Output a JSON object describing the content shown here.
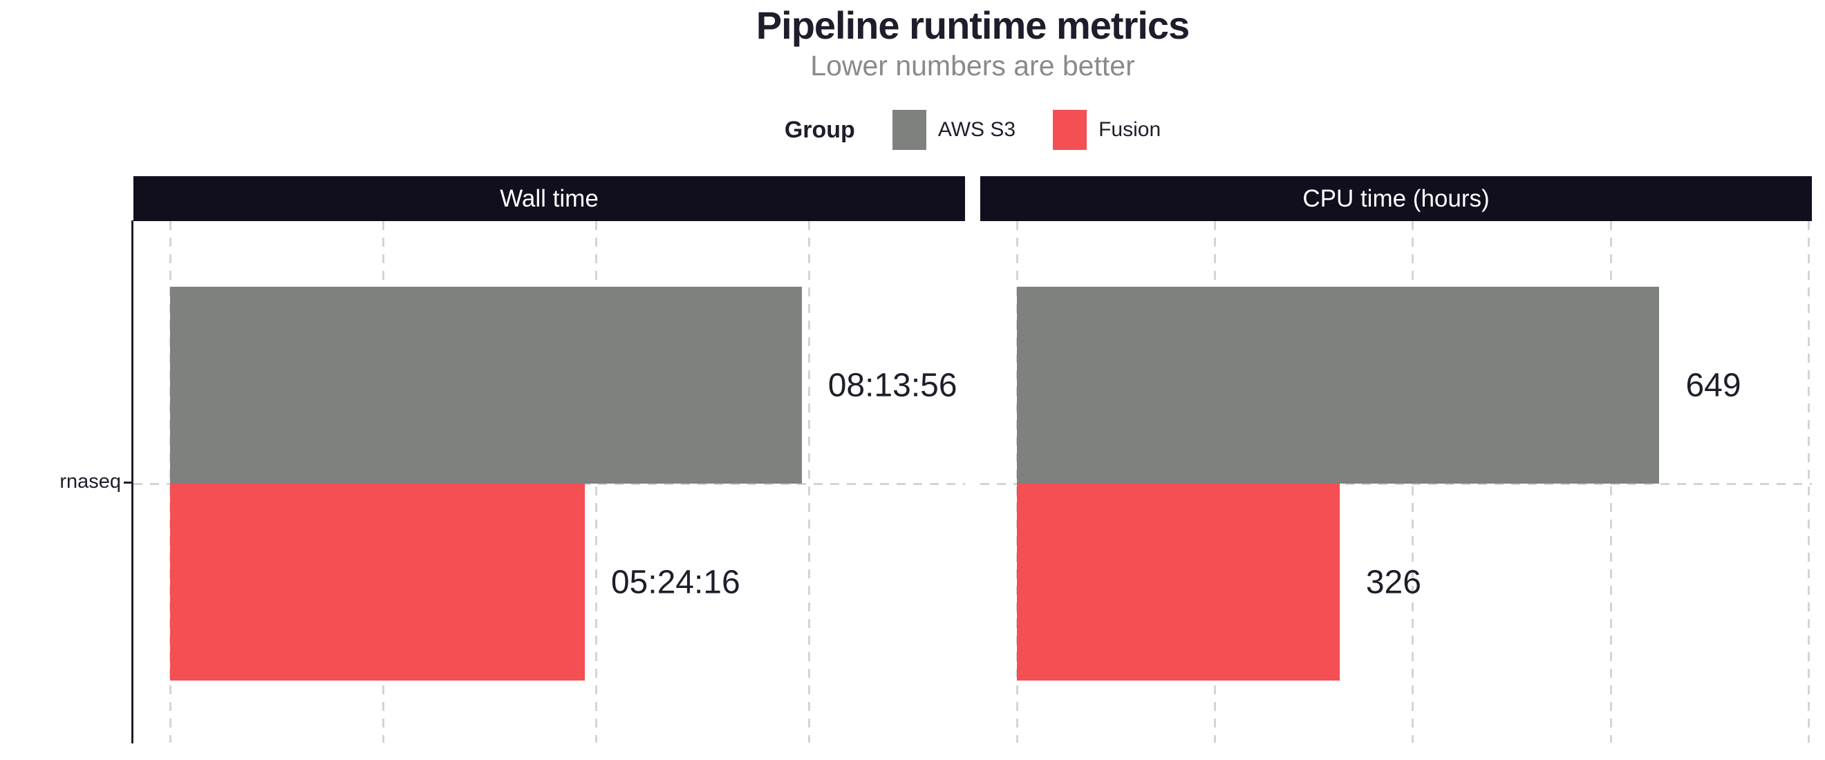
{
  "title": "Pipeline runtime metrics",
  "subtitle": "Lower numbers are better",
  "legend": {
    "title": "Group",
    "items": [
      {
        "label": "AWS S3",
        "color": "#7f817f"
      },
      {
        "label": "Fusion",
        "color": "#f44f53"
      }
    ]
  },
  "colors": {
    "text": "#1e1d2b",
    "subtitle": "#8a8a8a",
    "strip_background": "#110e1d",
    "strip_text": "#ffffff",
    "gridline": "#d4d4d4",
    "axis": "#1e1d2b",
    "aws_s3": "#7f817f",
    "fusion": "#f44f53",
    "background": "#ffffff"
  },
  "chart_data": {
    "type": "bar",
    "orientation": "horizontal",
    "title": "Pipeline runtime metrics",
    "subtitle": "Lower numbers are better",
    "legend_position": "top",
    "grid": "dashed",
    "categories": [
      "rnaseq"
    ],
    "facets": [
      {
        "title": "Wall time",
        "unit": "hh:mm:ss",
        "x_breaks_seconds": [
          0,
          10000,
          20000,
          30000
        ],
        "x_domain_max_seconds": 37300,
        "series": [
          {
            "group": "AWS S3",
            "value_seconds": 29636,
            "label": "08:13:56"
          },
          {
            "group": "Fusion",
            "value_seconds": 19456,
            "label": "05:24:16"
          }
        ]
      },
      {
        "title": "CPU time (hours)",
        "unit": "hours",
        "x_breaks": [
          0,
          200,
          400,
          600,
          800
        ],
        "x_domain_max": 803,
        "series": [
          {
            "group": "AWS S3",
            "value": 649,
            "label": "649"
          },
          {
            "group": "Fusion",
            "value": 326,
            "label": "326"
          }
        ]
      }
    ]
  }
}
